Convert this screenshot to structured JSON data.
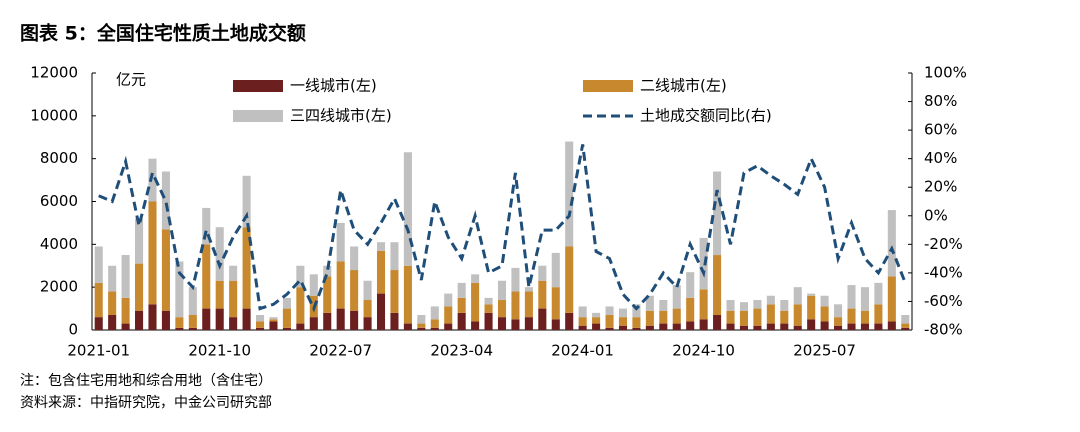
{
  "chart_data": {
    "type": "bar",
    "stacked": true,
    "title": "图表 5：全国住宅性质土地成交额",
    "y_label": "亿元",
    "categories": [
      "2021-01",
      null,
      null,
      null,
      null,
      null,
      null,
      null,
      null,
      "2021-10",
      null,
      null,
      null,
      null,
      null,
      null,
      null,
      null,
      "2022-07",
      null,
      null,
      null,
      null,
      null,
      null,
      null,
      null,
      "2023-04",
      null,
      null,
      null,
      null,
      null,
      null,
      null,
      null,
      "2024-01",
      null,
      null,
      null,
      null,
      null,
      null,
      null,
      null,
      "2024-10",
      null,
      null,
      null,
      null,
      null,
      null,
      null,
      null,
      "2025-07",
      null,
      null,
      null,
      null,
      null,
      null
    ],
    "series": [
      {
        "name": "一线城市(左)",
        "color": "#6b1f1f",
        "values": [
          600,
          700,
          300,
          900,
          1200,
          900,
          100,
          100,
          1000,
          1000,
          600,
          1000,
          100,
          400,
          100,
          300,
          600,
          800,
          1000,
          900,
          600,
          1700,
          800,
          300,
          100,
          100,
          300,
          800,
          400,
          800,
          600,
          500,
          600,
          1000,
          500,
          800,
          200,
          300,
          100,
          200,
          100,
          200,
          300,
          300,
          400,
          500,
          700,
          300,
          200,
          200,
          300,
          300,
          200,
          500,
          400,
          200,
          300,
          300,
          300,
          400,
          100
        ]
      },
      {
        "name": "二线城市(左)",
        "color": "#c8892e",
        "values": [
          1600,
          1100,
          1200,
          2200,
          4800,
          3800,
          500,
          600,
          3000,
          1300,
          1700,
          3800,
          300,
          100,
          900,
          1700,
          1000,
          1700,
          2200,
          1900,
          800,
          2000,
          2000,
          2700,
          200,
          400,
          800,
          700,
          1800,
          400,
          800,
          1300,
          1200,
          1300,
          1500,
          3100,
          400,
          300,
          600,
          400,
          500,
          700,
          600,
          700,
          1100,
          1400,
          2800,
          600,
          700,
          800,
          900,
          600,
          1000,
          1100,
          700,
          400,
          700,
          600,
          900,
          2100,
          200
        ]
      },
      {
        "name": "三四线城市(左)",
        "color": "#c0c0c0",
        "values": [
          1700,
          1200,
          2000,
          2100,
          2000,
          2700,
          2600,
          1300,
          1700,
          2500,
          700,
          2400,
          300,
          100,
          500,
          1000,
          1000,
          500,
          1800,
          1100,
          900,
          400,
          1300,
          5300,
          400,
          600,
          600,
          700,
          400,
          300,
          900,
          1100,
          200,
          700,
          1600,
          4900,
          500,
          200,
          400,
          400,
          600,
          700,
          500,
          1100,
          1200,
          2400,
          3900,
          500,
          400,
          400,
          400,
          500,
          800,
          100,
          500,
          600,
          1100,
          1100,
          1000,
          3100,
          400
        ]
      },
      {
        "name": "土地成交额同比(右)",
        "type": "line",
        "axis": "y2",
        "color": "#1f4e79",
        "values": [
          14,
          10,
          38,
          -7,
          30,
          10,
          -40,
          -50,
          -10,
          -35,
          -15,
          0,
          -65,
          -62,
          -55,
          -45,
          -65,
          -40,
          18,
          -10,
          -20,
          -5,
          12,
          -10,
          -45,
          10,
          -15,
          -30,
          0,
          -40,
          -35,
          30,
          -50,
          -10,
          -10,
          0,
          50,
          -25,
          -30,
          -55,
          -65,
          -55,
          -40,
          -50,
          -20,
          -40,
          18,
          -20,
          30,
          35,
          28,
          22,
          15,
          40,
          20,
          -30,
          -5,
          -30,
          -40,
          -23,
          -47
        ]
      }
    ],
    "ylim": [
      0,
      12000
    ],
    "yticks": [
      0,
      2000,
      4000,
      6000,
      8000,
      10000,
      12000
    ],
    "y2lim": [
      -80,
      100
    ],
    "y2ticks": [
      {
        "value": -80,
        "label": "-80%"
      },
      {
        "value": -60,
        "label": "-60%"
      },
      {
        "value": -40,
        "label": "-40%"
      },
      {
        "value": -20,
        "label": "-20%"
      },
      {
        "value": 0,
        "label": "0%"
      },
      {
        "value": 20,
        "label": "20%"
      },
      {
        "value": 40,
        "label": "40%"
      },
      {
        "value": 60,
        "label": "60%"
      },
      {
        "value": 80,
        "label": "80%"
      },
      {
        "value": 100,
        "label": "100%"
      }
    ]
  },
  "notes": [
    "注：包含住宅用地和综合用地（含住宅）",
    "资料来源：中指研究院，中金公司研究部"
  ]
}
